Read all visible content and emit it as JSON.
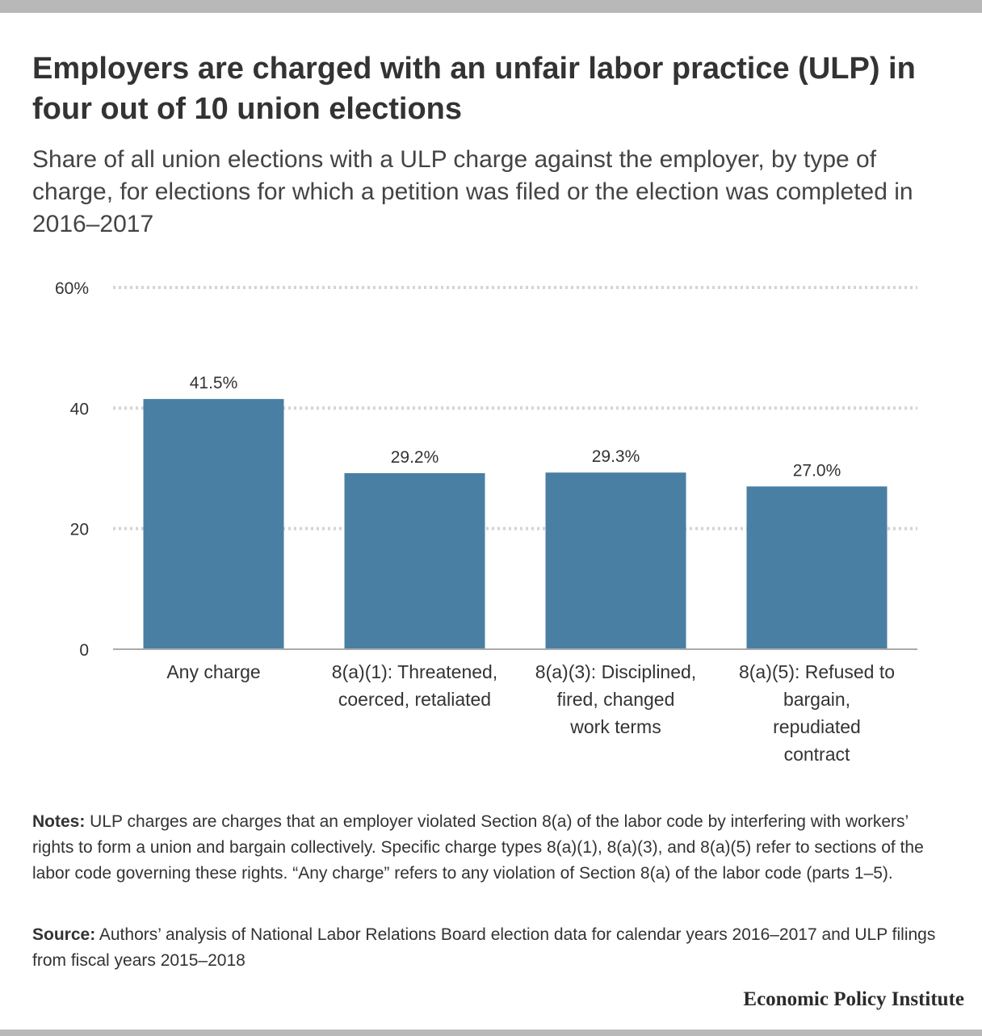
{
  "title": "Employers are charged with an unfair labor practice (ULP) in four out of 10 union elections",
  "subtitle": "Share of all union elections with a ULP charge against the employer, by type of charge, for elections for which a petition was filed or the election was completed in 2016–2017",
  "chart_data": {
    "type": "bar",
    "categories": [
      [
        "Any charge"
      ],
      [
        "8(a)(1): Threatened,",
        "coerced, retaliated"
      ],
      [
        "8(a)(3): Disciplined,",
        "fired, changed",
        "work terms"
      ],
      [
        "8(a)(5): Refused to",
        "bargain,",
        "repudiated",
        "contract"
      ]
    ],
    "values": [
      41.5,
      29.2,
      29.3,
      27.0
    ],
    "data_labels": [
      "41.5%",
      "29.2%",
      "29.3%",
      "27.0%"
    ],
    "ylim": [
      0,
      60
    ],
    "yticks": [
      0,
      20,
      40,
      60
    ],
    "ytick_labels": [
      "0",
      "20",
      "40",
      "60%"
    ],
    "grid": true,
    "bar_color": "#4a7fa4"
  },
  "notes": {
    "label": "Notes:",
    "text": " ULP charges are charges that an employer violated Section 8(a) of the labor code by interfering with workers’ rights to form a union and bargain collectively. Specific charge types 8(a)(1), 8(a)(3), and 8(a)(5) refer to sections of the labor code governing these rights. “Any charge” refers to any violation of Section 8(a) of the labor code (parts 1–5)."
  },
  "source": {
    "label": "Source:",
    "text": " Authors’ analysis of National Labor Relations Board election data for calendar years 2016–2017 and ULP filings from fiscal years 2015–2018"
  },
  "brand": "Economic Policy Institute"
}
